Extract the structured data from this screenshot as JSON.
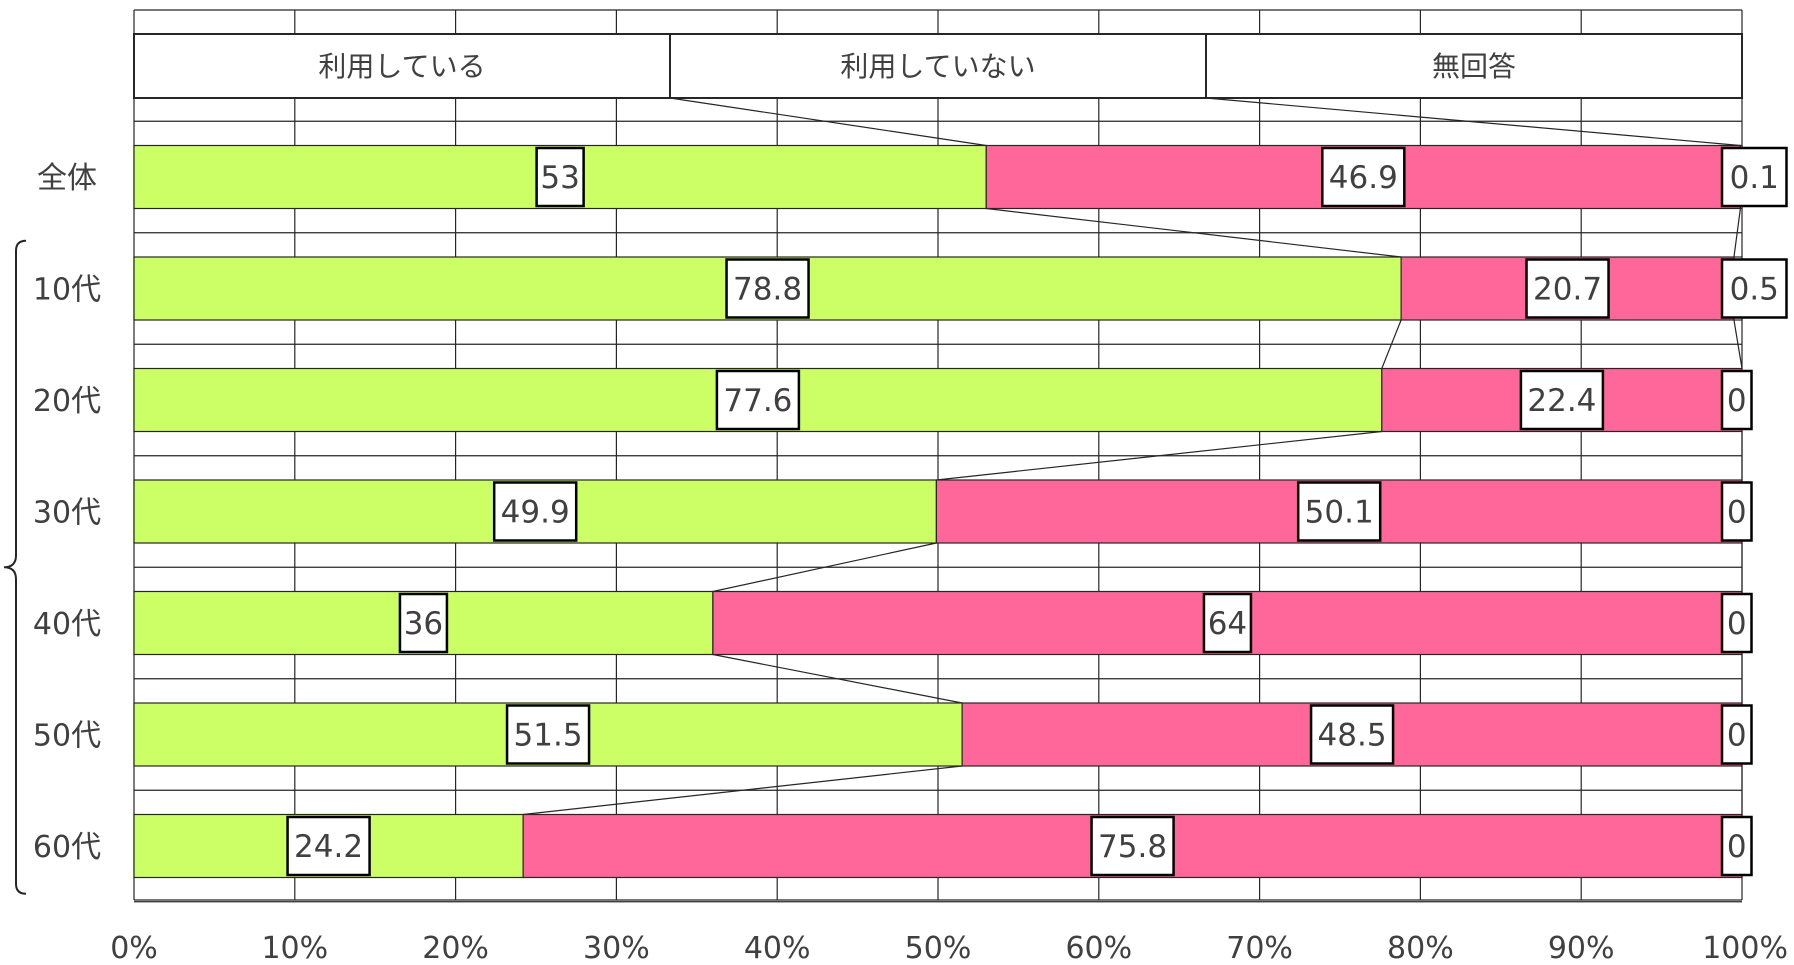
{
  "chart_data": {
    "type": "bar",
    "orientation": "horizontal",
    "stacked": true,
    "normalized": true,
    "categories": [
      "全体",
      "10代",
      "20代",
      "30代",
      "40代",
      "50代",
      "60代"
    ],
    "series": [
      {
        "name": "利用している",
        "color": "#CCFF66",
        "values": [
          53,
          78.8,
          77.6,
          49.9,
          36,
          51.5,
          24.2
        ]
      },
      {
        "name": "利用していない",
        "color": "#FF6699",
        "values": [
          46.9,
          20.7,
          22.4,
          50.1,
          64,
          48.5,
          75.8
        ]
      },
      {
        "name": "無回答",
        "color": "#FFFFFF",
        "values": [
          0.1,
          0.5,
          0,
          0,
          0,
          0,
          0
        ]
      }
    ],
    "xlim": [
      0,
      100
    ],
    "xticks": [
      "0%",
      "10%",
      "20%",
      "30%",
      "40%",
      "50%",
      "60%",
      "70%",
      "80%",
      "90%",
      "100%"
    ],
    "grid": true,
    "legend_position": "top",
    "series_lines": true,
    "bracket_group": [
      "10代",
      "20代",
      "30代",
      "40代",
      "50代",
      "60代"
    ]
  }
}
